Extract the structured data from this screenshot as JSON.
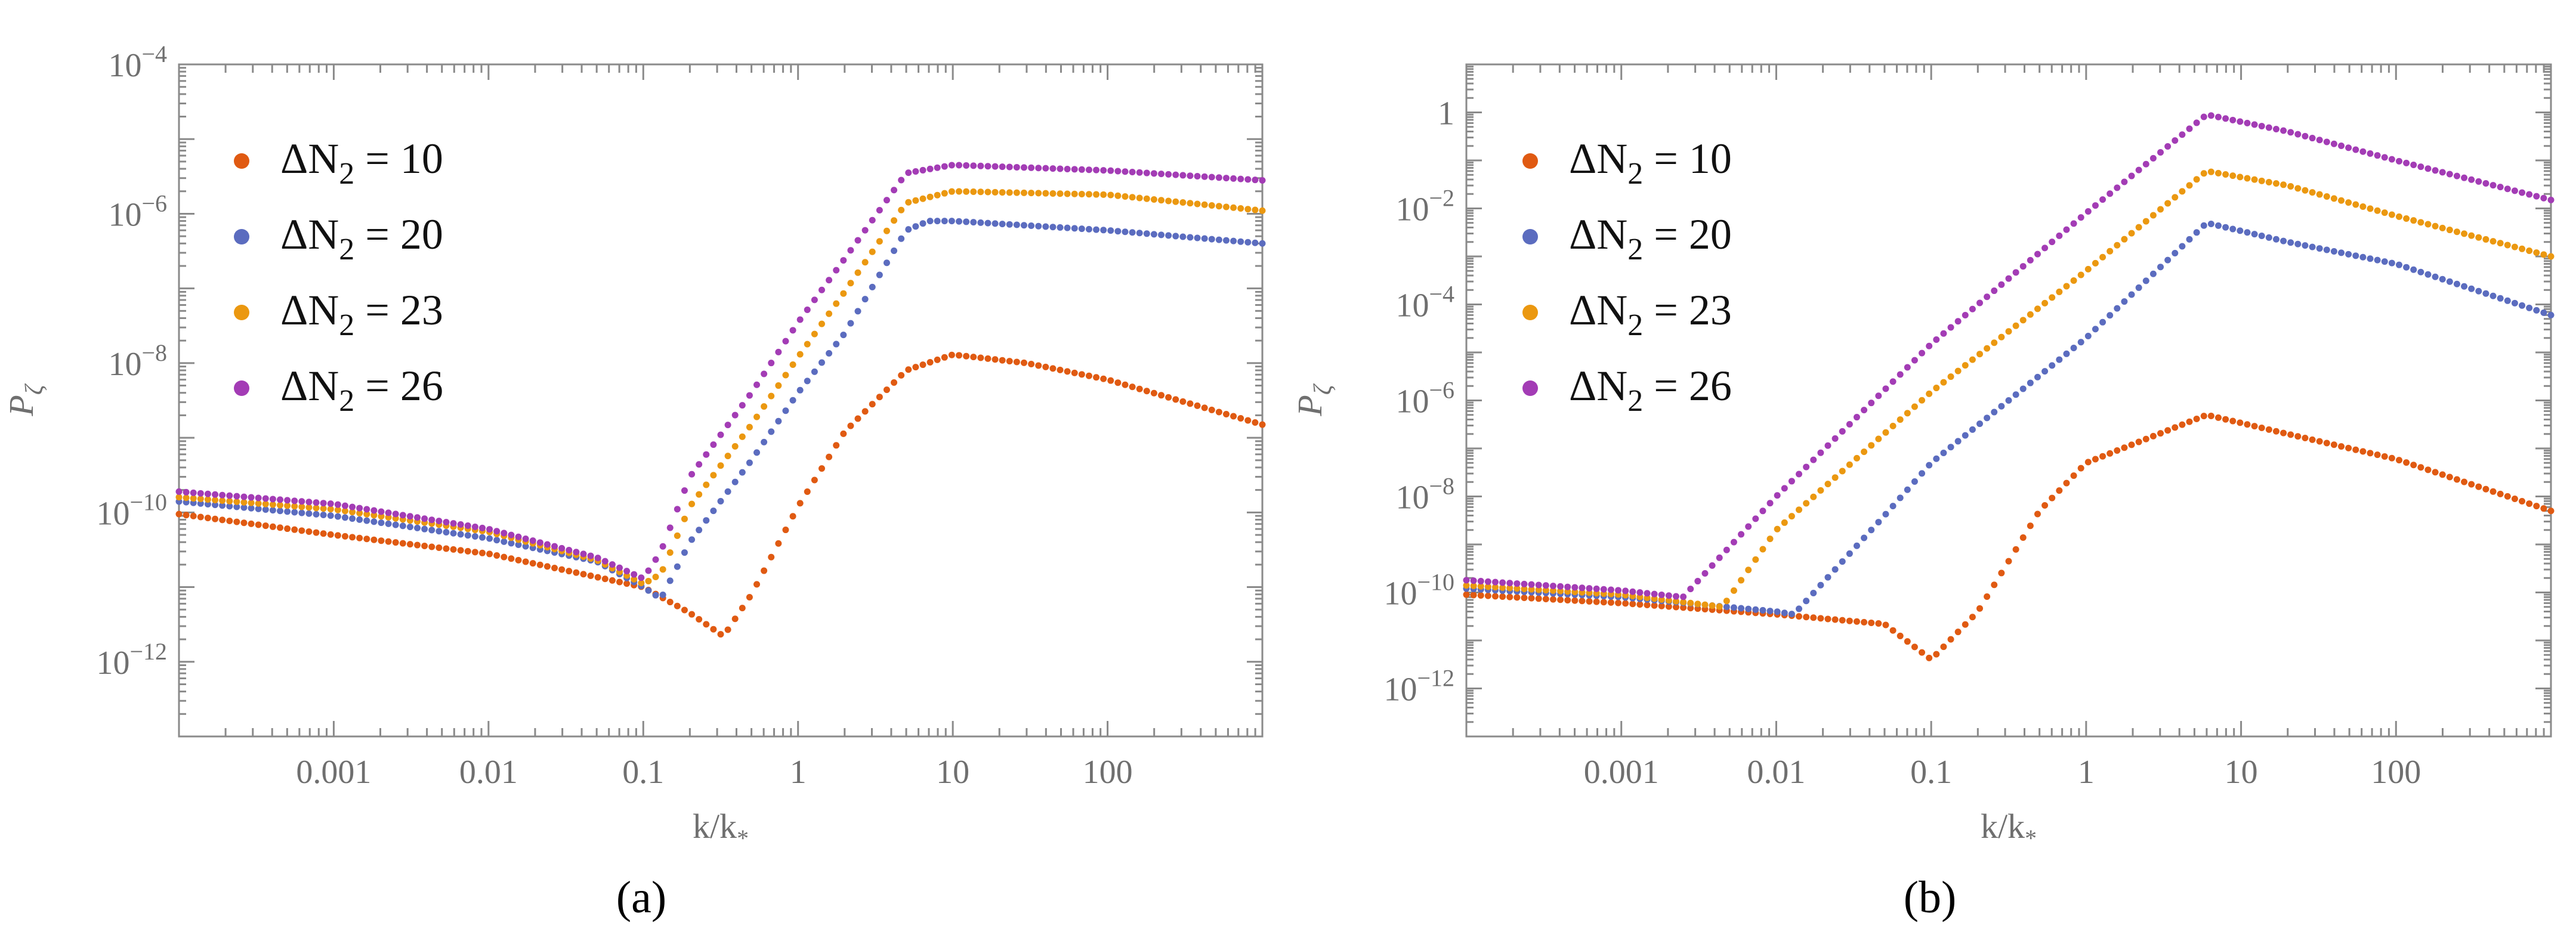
{
  "figure": {
    "panel_labels": [
      "(a)",
      "(b)"
    ]
  },
  "chart_data": [
    {
      "type": "scatter",
      "panel": "(a)",
      "xscale": "log",
      "yscale": "log",
      "xlabel": "k/k*",
      "ylabel": "Pζ",
      "xlim": [
        0.0001,
        1000
      ],
      "ylim": [
        1e-13,
        0.0001
      ],
      "xticks": [
        {
          "value": 0.001,
          "label": "0.001"
        },
        {
          "value": 0.01,
          "label": "0.01"
        },
        {
          "value": 0.1,
          "label": "0.1"
        },
        {
          "value": 1,
          "label": "1"
        },
        {
          "value": 10,
          "label": "10"
        },
        {
          "value": 100,
          "label": "100"
        }
      ],
      "yticks": [
        {
          "value": 1e-12,
          "base": "10",
          "exp": "−12"
        },
        {
          "value": 1e-10,
          "base": "10",
          "exp": "−10"
        },
        {
          "value": 1e-08,
          "base": "10",
          "exp": "−8"
        },
        {
          "value": 1e-06,
          "base": "10",
          "exp": "−6"
        },
        {
          "value": 0.0001,
          "base": "10",
          "exp": "−4"
        }
      ],
      "legend_position": "top-left",
      "series": [
        {
          "name": "ΔN2 = 10",
          "label_main": "ΔN",
          "label_sub": "2",
          "label_rest": " = 10",
          "color": "#e05a12",
          "points": [
            [
              0.0001,
              9.5e-11
            ],
            [
              0.001,
              5e-11
            ],
            [
              0.01,
              2.8e-11
            ],
            [
              0.1,
              1e-11
            ],
            [
              0.2,
              4.5e-12
            ],
            [
              0.33,
              2.2e-12
            ],
            [
              0.5,
              8e-12
            ],
            [
              1,
              1.2e-10
            ],
            [
              2,
              1.2e-09
            ],
            [
              5,
              8e-09
            ],
            [
              10,
              1.3e-08
            ],
            [
              30,
              1e-08
            ],
            [
              100,
              6e-09
            ],
            [
              1000,
              1.5e-09
            ]
          ]
        },
        {
          "name": "ΔN2 = 20",
          "label_main": "ΔN",
          "label_sub": "2",
          "label_rest": " = 20",
          "color": "#5b6cbf",
          "points": [
            [
              0.0001,
              1.4e-10
            ],
            [
              0.001,
              9e-11
            ],
            [
              0.01,
              4.5e-11
            ],
            [
              0.05,
              2.2e-11
            ],
            [
              0.1,
              1e-11
            ],
            [
              0.13,
              7e-12
            ],
            [
              0.2,
              4e-11
            ],
            [
              0.5,
              5e-10
            ],
            [
              1,
              4e-09
            ],
            [
              2,
              2.5e-08
            ],
            [
              5,
              6e-07
            ],
            [
              7,
              8e-07
            ],
            [
              10,
              8e-07
            ],
            [
              100,
              6e-07
            ],
            [
              1000,
              4e-07
            ]
          ]
        },
        {
          "name": "ΔN2 = 23",
          "label_main": "ΔN",
          "label_sub": "2",
          "label_rest": " = 23",
          "color": "#eb9810",
          "points": [
            [
              0.0001,
              1.6e-10
            ],
            [
              0.001,
              1.1e-10
            ],
            [
              0.01,
              5.5e-11
            ],
            [
              0.05,
              2.3e-11
            ],
            [
              0.1,
              1.1e-11
            ],
            [
              0.13,
              1.5e-11
            ],
            [
              0.2,
              1.2e-10
            ],
            [
              0.5,
              1.5e-09
            ],
            [
              1,
              1.2e-08
            ],
            [
              2,
              9e-08
            ],
            [
              5,
              1.4e-06
            ],
            [
              10,
              2e-06
            ],
            [
              100,
              1.8e-06
            ],
            [
              1000,
              1.1e-06
            ]
          ]
        },
        {
          "name": "ΔN2 = 26",
          "label_main": "ΔN",
          "label_sub": "2",
          "label_rest": " = 26",
          "color": "#a33cb5",
          "points": [
            [
              0.0001,
              1.9e-10
            ],
            [
              0.001,
              1.3e-10
            ],
            [
              0.01,
              6e-11
            ],
            [
              0.05,
              2.5e-11
            ],
            [
              0.1,
              1.3e-11
            ],
            [
              0.13,
              3e-11
            ],
            [
              0.2,
              3e-10
            ],
            [
              0.5,
              4e-09
            ],
            [
              1,
              3.5e-08
            ],
            [
              2,
              2.5e-07
            ],
            [
              5,
              3.5e-06
            ],
            [
              10,
              4.5e-06
            ],
            [
              100,
              3.8e-06
            ],
            [
              1000,
              2.8e-06
            ]
          ]
        }
      ]
    },
    {
      "type": "scatter",
      "panel": "(b)",
      "xscale": "log",
      "yscale": "log",
      "xlabel": "k/k*",
      "ylabel": "Pζ",
      "xlim": [
        0.0001,
        1000
      ],
      "ylim": [
        1e-13,
        10
      ],
      "xticks": [
        {
          "value": 0.001,
          "label": "0.001"
        },
        {
          "value": 0.01,
          "label": "0.01"
        },
        {
          "value": 0.1,
          "label": "0.1"
        },
        {
          "value": 1,
          "label": "1"
        },
        {
          "value": 10,
          "label": "10"
        },
        {
          "value": 100,
          "label": "100"
        }
      ],
      "yticks": [
        {
          "value": 1e-12,
          "base": "10",
          "exp": "−12"
        },
        {
          "value": 1e-10,
          "base": "10",
          "exp": "−10"
        },
        {
          "value": 1e-08,
          "base": "10",
          "exp": "−8"
        },
        {
          "value": 1e-06,
          "base": "10",
          "exp": "−6"
        },
        {
          "value": 0.0001,
          "base": "10",
          "exp": "−4"
        },
        {
          "value": 0.01,
          "base": "10",
          "exp": "−2"
        },
        {
          "value": 1,
          "base": "1",
          "exp": ""
        }
      ],
      "legend_position": "top-left",
      "series": [
        {
          "name": "ΔN2 = 10",
          "label_main": "ΔN",
          "label_sub": "2",
          "label_rest": " = 10",
          "color": "#e05a12",
          "points": [
            [
              0.0001,
              9e-11
            ],
            [
              0.001,
              6e-11
            ],
            [
              0.01,
              3.5e-11
            ],
            [
              0.05,
              2.2e-11
            ],
            [
              0.1,
              4e-12
            ],
            [
              0.2,
              4e-11
            ],
            [
              0.5,
              5e-09
            ],
            [
              1,
              5e-08
            ],
            [
              6,
              5e-07
            ],
            [
              20,
              2e-07
            ],
            [
              100,
              6e-08
            ],
            [
              1000,
              5e-09
            ]
          ]
        },
        {
          "name": "ΔN2 = 20",
          "label_main": "ΔN",
          "label_sub": "2",
          "label_rest": " = 20",
          "color": "#5b6cbf",
          "points": [
            [
              0.0001,
              1.2e-10
            ],
            [
              0.001,
              8e-11
            ],
            [
              0.01,
              4e-11
            ],
            [
              0.013,
              3.5e-11
            ],
            [
              0.05,
              4e-09
            ],
            [
              0.1,
              5e-08
            ],
            [
              1,
              2e-05
            ],
            [
              6,
              0.005
            ],
            [
              20,
              0.002
            ],
            [
              100,
              0.0007
            ],
            [
              1000,
              6e-05
            ]
          ]
        },
        {
          "name": "ΔN2 = 23",
          "label_main": "ΔN",
          "label_sub": "2",
          "label_rest": " = 23",
          "color": "#eb9810",
          "points": [
            [
              0.0001,
              1.4e-10
            ],
            [
              0.001,
              9e-11
            ],
            [
              0.0045,
              5e-11
            ],
            [
              0.01,
              2e-09
            ],
            [
              0.1,
              1.5e-06
            ],
            [
              1,
              0.0005
            ],
            [
              6,
              0.06
            ],
            [
              20,
              0.03
            ],
            [
              100,
              0.007
            ],
            [
              1000,
              0.001
            ]
          ]
        },
        {
          "name": "ΔN2 = 26",
          "label_main": "ΔN",
          "label_sub": "2",
          "label_rest": " = 26",
          "color": "#a33cb5",
          "points": [
            [
              0.0001,
              1.8e-10
            ],
            [
              0.001,
              1.1e-10
            ],
            [
              0.0025,
              8e-11
            ],
            [
              0.01,
              1e-08
            ],
            [
              0.1,
              1.5e-05
            ],
            [
              1,
              0.008
            ],
            [
              6,
              0.9
            ],
            [
              20,
              0.4
            ],
            [
              100,
              0.1
            ],
            [
              1000,
              0.015
            ]
          ]
        }
      ]
    }
  ]
}
